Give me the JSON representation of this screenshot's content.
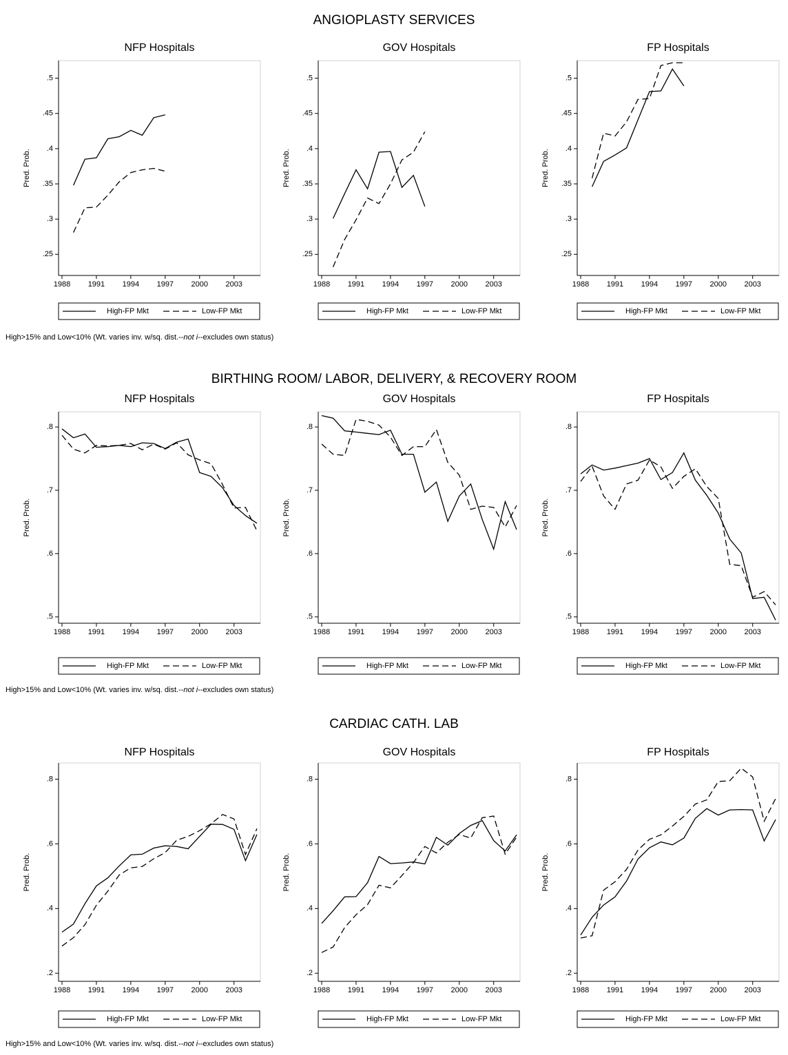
{
  "sections": [
    {
      "title": "ANGIOPLASTY SERVICES",
      "note_parts": [
        "High>15% and Low<10% (Wt. varies inv. w/sq. dist.--",
        "not i",
        "--excludes own status)"
      ]
    },
    {
      "title": "BIRTHING ROOM/ LABOR, DELIVERY, & RECOVERY ROOM",
      "note_parts": [
        "High>15% and Low<10% (Wt. varies inv. w/sq. dist.--",
        "not i",
        "--excludes own status)"
      ]
    },
    {
      "title": "CARDIAC CATH. LAB",
      "note_parts": [
        "High>15% and Low<10% (Wt. varies inv. w/sq. dist.--",
        "not i",
        "--excludes own status)"
      ]
    }
  ],
  "chart_data": [
    {
      "type": "line",
      "title": "NFP Hospitals",
      "ylabel": "Pred. Prob.",
      "x": [
        1989,
        1990,
        1991,
        1992,
        1993,
        1994,
        1995,
        1996,
        1997
      ],
      "series": [
        {
          "name": "High-FP Mkt",
          "color": "#000000",
          "linestyle": "solid",
          "values": [
            0.348,
            0.385,
            0.387,
            0.414,
            0.417,
            0.426,
            0.419,
            0.444,
            0.448
          ]
        },
        {
          "name": "Low-FP Mkt",
          "color": "#000000",
          "linestyle": "dashed",
          "values": [
            0.281,
            0.316,
            0.317,
            0.334,
            0.353,
            0.366,
            0.37,
            0.372,
            0.368
          ]
        }
      ],
      "xlim": [
        1987.7,
        2005.3
      ],
      "ylim": [
        0.22,
        0.525
      ],
      "xticks": [
        1988,
        1991,
        1994,
        1997,
        2000,
        2003
      ],
      "yticks": [
        {
          "value": 0.25,
          "label": ".25"
        },
        {
          "value": 0.3,
          "label": ".3"
        },
        {
          "value": 0.35,
          "label": ".35"
        },
        {
          "value": 0.4,
          "label": ".4"
        },
        {
          "value": 0.45,
          "label": ".45"
        },
        {
          "value": 0.5,
          "label": ".5"
        }
      ]
    },
    {
      "type": "line",
      "title": "GOV Hospitals",
      "ylabel": "Pred. Prob.",
      "x": [
        1989,
        1990,
        1991,
        1992,
        1993,
        1994,
        1995,
        1996,
        1997
      ],
      "series": [
        {
          "name": "High-FP Mkt",
          "color": "#000000",
          "linestyle": "solid",
          "values": [
            0.301,
            0.336,
            0.37,
            0.343,
            0.395,
            0.396,
            0.345,
            0.362,
            0.318
          ]
        },
        {
          "name": "Low-FP Mkt",
          "color": "#000000",
          "linestyle": "dashed",
          "values": [
            0.232,
            0.271,
            0.299,
            0.33,
            0.322,
            0.35,
            0.384,
            0.395,
            0.424
          ]
        }
      ],
      "xlim": [
        1987.7,
        2005.3
      ],
      "ylim": [
        0.22,
        0.525
      ],
      "xticks": [
        1988,
        1991,
        1994,
        1997,
        2000,
        2003
      ],
      "yticks": [
        {
          "value": 0.25,
          "label": ".25"
        },
        {
          "value": 0.3,
          "label": ".3"
        },
        {
          "value": 0.35,
          "label": ".35"
        },
        {
          "value": 0.4,
          "label": ".4"
        },
        {
          "value": 0.45,
          "label": ".45"
        },
        {
          "value": 0.5,
          "label": ".5"
        }
      ]
    },
    {
      "type": "line",
      "title": "FP Hospitals",
      "ylabel": "Pred. Prob.",
      "x": [
        1989,
        1990,
        1991,
        1992,
        1993,
        1994,
        1995,
        1996,
        1997
      ],
      "series": [
        {
          "name": "High-FP Mkt",
          "color": "#000000",
          "linestyle": "solid",
          "values": [
            0.346,
            0.382,
            0.391,
            0.401,
            0.441,
            0.481,
            0.482,
            0.513,
            0.489
          ]
        },
        {
          "name": "Low-FP Mkt",
          "color": "#000000",
          "linestyle": "dashed",
          "values": [
            0.358,
            0.422,
            0.418,
            0.438,
            0.47,
            0.471,
            0.518,
            0.522,
            0.522
          ]
        }
      ],
      "xlim": [
        1987.7,
        2005.3
      ],
      "ylim": [
        0.22,
        0.525
      ],
      "xticks": [
        1988,
        1991,
        1994,
        1997,
        2000,
        2003
      ],
      "yticks": [
        {
          "value": 0.25,
          "label": ".25"
        },
        {
          "value": 0.3,
          "label": ".3"
        },
        {
          "value": 0.35,
          "label": ".35"
        },
        {
          "value": 0.4,
          "label": ".4"
        },
        {
          "value": 0.45,
          "label": ".45"
        },
        {
          "value": 0.5,
          "label": ".5"
        }
      ]
    },
    {
      "type": "line",
      "title": "NFP Hospitals",
      "ylabel": "Pred. Prob.",
      "x": [
        1988,
        1989,
        1990,
        1991,
        1992,
        1993,
        1994,
        1995,
        1996,
        1997,
        1998,
        1999,
        2000,
        2001,
        2002,
        2003,
        2004,
        2005
      ],
      "series": [
        {
          "name": "High-FP Mkt",
          "color": "#000000",
          "linestyle": "solid",
          "values": [
            0.797,
            0.783,
            0.789,
            0.768,
            0.769,
            0.771,
            0.769,
            0.775,
            0.774,
            0.766,
            0.776,
            0.781,
            0.728,
            0.722,
            0.704,
            0.676,
            0.66,
            0.648
          ]
        },
        {
          "name": "Low-FP Mkt",
          "color": "#000000",
          "linestyle": "dashed",
          "values": [
            0.787,
            0.765,
            0.759,
            0.771,
            0.77,
            0.771,
            0.774,
            0.764,
            0.773,
            0.765,
            0.775,
            0.756,
            0.748,
            0.742,
            0.709,
            0.672,
            0.673,
            0.636
          ]
        }
      ],
      "xlim": [
        1987.7,
        2005.3
      ],
      "ylim": [
        0.49,
        0.824
      ],
      "xticks": [
        1988,
        1991,
        1994,
        1997,
        2000,
        2003
      ],
      "yticks": [
        {
          "value": 0.5,
          "label": ".5"
        },
        {
          "value": 0.6,
          "label": ".6"
        },
        {
          "value": 0.7,
          "label": ".7"
        },
        {
          "value": 0.8,
          "label": ".8"
        }
      ]
    },
    {
      "type": "line",
      "title": "GOV Hospitals",
      "ylabel": "Pred. Prob.",
      "x": [
        1988,
        1989,
        1990,
        1991,
        1992,
        1993,
        1994,
        1995,
        1996,
        1997,
        1998,
        1999,
        2000,
        2001,
        2002,
        2003,
        2004,
        2005
      ],
      "series": [
        {
          "name": "High-FP Mkt",
          "color": "#000000",
          "linestyle": "solid",
          "values": [
            0.818,
            0.814,
            0.794,
            0.792,
            0.79,
            0.788,
            0.795,
            0.757,
            0.757,
            0.697,
            0.713,
            0.651,
            0.691,
            0.71,
            0.654,
            0.607,
            0.682,
            0.638
          ]
        },
        {
          "name": "Low-FP Mkt",
          "color": "#000000",
          "linestyle": "dashed",
          "values": [
            0.773,
            0.757,
            0.755,
            0.812,
            0.809,
            0.803,
            0.784,
            0.755,
            0.769,
            0.769,
            0.796,
            0.744,
            0.724,
            0.67,
            0.675,
            0.673,
            0.642,
            0.676
          ]
        }
      ],
      "xlim": [
        1987.7,
        2005.3
      ],
      "ylim": [
        0.49,
        0.824
      ],
      "xticks": [
        1988,
        1991,
        1994,
        1997,
        2000,
        2003
      ],
      "yticks": [
        {
          "value": 0.5,
          "label": ".5"
        },
        {
          "value": 0.6,
          "label": ".6"
        },
        {
          "value": 0.7,
          "label": ".7"
        },
        {
          "value": 0.8,
          "label": ".8"
        }
      ]
    },
    {
      "type": "line",
      "title": "FP Hospitals",
      "ylabel": "Pred. Prob.",
      "x": [
        1988,
        1989,
        1990,
        1991,
        1992,
        1993,
        1994,
        1995,
        1996,
        1997,
        1998,
        1999,
        2000,
        2001,
        2002,
        2003,
        2004,
        2005
      ],
      "series": [
        {
          "name": "High-FP Mkt",
          "color": "#000000",
          "linestyle": "solid",
          "values": [
            0.726,
            0.74,
            0.732,
            0.735,
            0.739,
            0.743,
            0.75,
            0.717,
            0.728,
            0.759,
            0.716,
            0.692,
            0.664,
            0.623,
            0.601,
            0.529,
            0.531,
            0.495
          ]
        },
        {
          "name": "Low-FP Mkt",
          "color": "#000000",
          "linestyle": "dashed",
          "values": [
            0.714,
            0.738,
            0.691,
            0.67,
            0.71,
            0.716,
            0.748,
            0.737,
            0.703,
            0.722,
            0.734,
            0.706,
            0.687,
            0.583,
            0.581,
            0.531,
            0.54,
            0.519
          ]
        }
      ],
      "xlim": [
        1987.7,
        2005.3
      ],
      "ylim": [
        0.49,
        0.824
      ],
      "xticks": [
        1988,
        1991,
        1994,
        1997,
        2000,
        2003
      ],
      "yticks": [
        {
          "value": 0.5,
          "label": ".5"
        },
        {
          "value": 0.6,
          "label": ".6"
        },
        {
          "value": 0.7,
          "label": ".7"
        },
        {
          "value": 0.8,
          "label": ".8"
        }
      ]
    },
    {
      "type": "line",
      "title": "NFP Hospitals",
      "ylabel": "Pred. Prob.",
      "x": [
        1988,
        1989,
        1990,
        1991,
        1992,
        1993,
        1994,
        1995,
        1996,
        1997,
        1998,
        1999,
        2000,
        2001,
        2002,
        2003,
        2004,
        2005
      ],
      "series": [
        {
          "name": "High-FP Mkt",
          "color": "#000000",
          "linestyle": "solid",
          "values": [
            0.327,
            0.352,
            0.415,
            0.47,
            0.495,
            0.532,
            0.566,
            0.568,
            0.587,
            0.594,
            0.592,
            0.585,
            0.623,
            0.661,
            0.66,
            0.645,
            0.548,
            0.629
          ]
        },
        {
          "name": "Low-FP Mkt",
          "color": "#000000",
          "linestyle": "dashed",
          "values": [
            0.284,
            0.31,
            0.35,
            0.41,
            0.454,
            0.504,
            0.526,
            0.53,
            0.554,
            0.573,
            0.611,
            0.623,
            0.641,
            0.662,
            0.691,
            0.677,
            0.567,
            0.647
          ]
        }
      ],
      "xlim": [
        1987.7,
        2005.3
      ],
      "ylim": [
        0.175,
        0.85
      ],
      "xticks": [
        1988,
        1991,
        1994,
        1997,
        2000,
        2003
      ],
      "yticks": [
        {
          "value": 0.2,
          "label": ".2"
        },
        {
          "value": 0.4,
          "label": ".4"
        },
        {
          "value": 0.6,
          "label": ".6"
        },
        {
          "value": 0.8,
          "label": ".8"
        }
      ]
    },
    {
      "type": "line",
      "title": "GOV Hospitals",
      "ylabel": "Pred. Prob.",
      "x": [
        1988,
        1989,
        1990,
        1991,
        1992,
        1993,
        1994,
        1995,
        1996,
        1997,
        1998,
        1999,
        2000,
        2001,
        2002,
        2003,
        2004,
        2005
      ],
      "series": [
        {
          "name": "High-FP Mkt",
          "color": "#000000",
          "linestyle": "solid",
          "values": [
            0.354,
            0.393,
            0.436,
            0.437,
            0.48,
            0.561,
            0.539,
            0.541,
            0.544,
            0.538,
            0.62,
            0.596,
            0.632,
            0.657,
            0.672,
            0.61,
            0.578,
            0.628
          ]
        },
        {
          "name": "Low-FP Mkt",
          "color": "#000000",
          "linestyle": "dashed",
          "values": [
            0.264,
            0.281,
            0.341,
            0.381,
            0.412,
            0.472,
            0.464,
            0.502,
            0.542,
            0.592,
            0.572,
            0.605,
            0.629,
            0.618,
            0.681,
            0.686,
            0.568,
            0.621
          ]
        }
      ],
      "xlim": [
        1987.7,
        2005.3
      ],
      "ylim": [
        0.175,
        0.85
      ],
      "xticks": [
        1988,
        1991,
        1994,
        1997,
        2000,
        2003
      ],
      "yticks": [
        {
          "value": 0.2,
          "label": ".2"
        },
        {
          "value": 0.4,
          "label": ".4"
        },
        {
          "value": 0.6,
          "label": ".6"
        },
        {
          "value": 0.8,
          "label": ".8"
        }
      ]
    },
    {
      "type": "line",
      "title": "FP Hospitals",
      "ylabel": "Pred. Prob.",
      "x": [
        1988,
        1989,
        1990,
        1991,
        1992,
        1993,
        1994,
        1995,
        1996,
        1997,
        1998,
        1999,
        2000,
        2001,
        2002,
        2003,
        2004,
        2005
      ],
      "series": [
        {
          "name": "High-FP Mkt",
          "color": "#000000",
          "linestyle": "solid",
          "values": [
            0.318,
            0.373,
            0.411,
            0.436,
            0.485,
            0.553,
            0.588,
            0.606,
            0.597,
            0.618,
            0.679,
            0.709,
            0.689,
            0.705,
            0.706,
            0.705,
            0.609,
            0.675
          ]
        },
        {
          "name": "Low-FP Mkt",
          "color": "#000000",
          "linestyle": "dashed",
          "values": [
            0.309,
            0.316,
            0.457,
            0.483,
            0.521,
            0.581,
            0.614,
            0.628,
            0.655,
            0.685,
            0.723,
            0.736,
            0.793,
            0.795,
            0.834,
            0.807,
            0.67,
            0.74
          ]
        }
      ],
      "xlim": [
        1987.7,
        2005.3
      ],
      "ylim": [
        0.175,
        0.85
      ],
      "xticks": [
        1988,
        1991,
        1994,
        1997,
        2000,
        2003
      ],
      "yticks": [
        {
          "value": 0.2,
          "label": ".2"
        },
        {
          "value": 0.4,
          "label": ".4"
        },
        {
          "value": 0.6,
          "label": ".6"
        },
        {
          "value": 0.8,
          "label": ".8"
        }
      ]
    }
  ]
}
